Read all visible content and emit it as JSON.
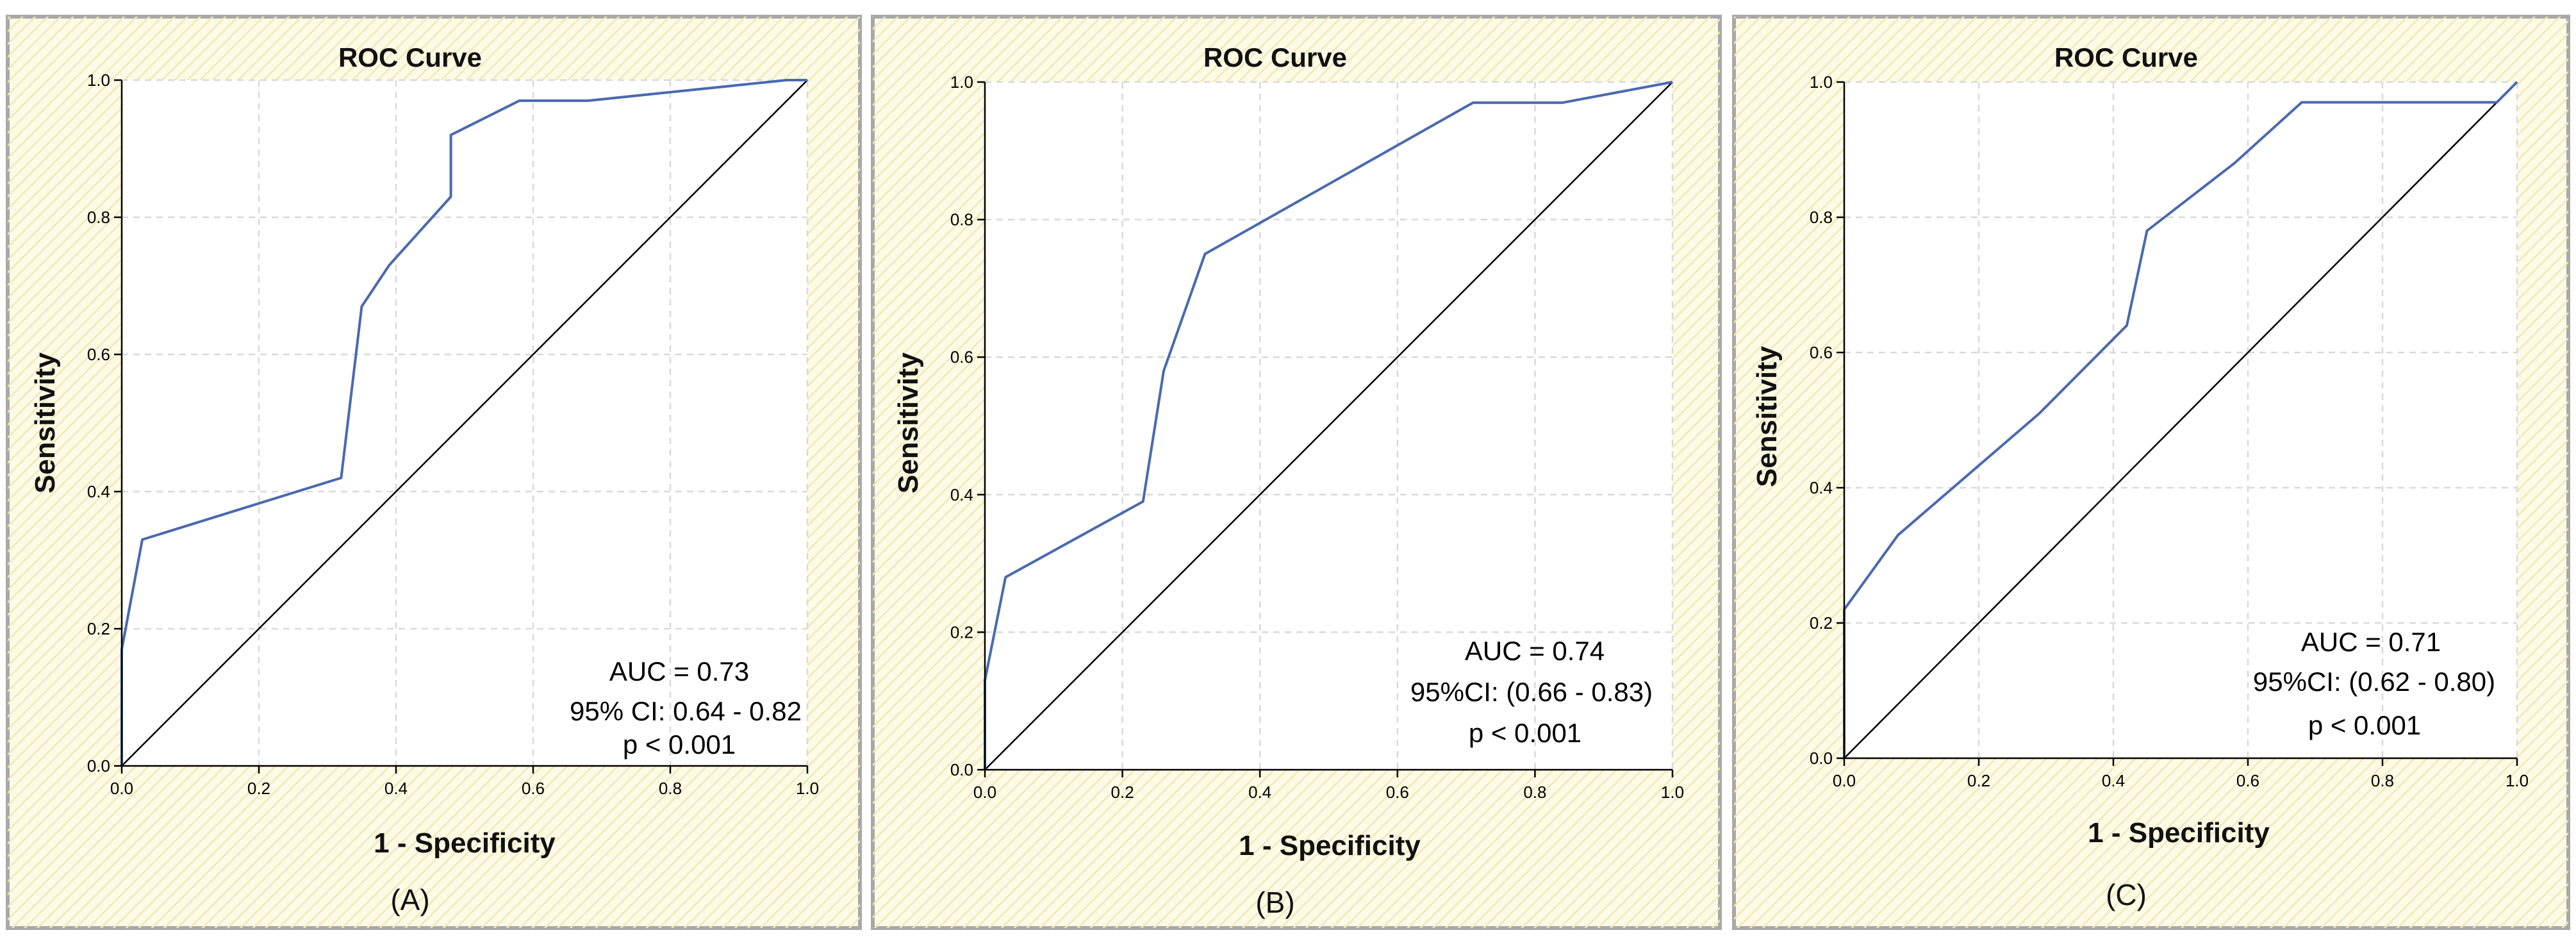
{
  "chart_data": [
    {
      "panel": "(A)",
      "type": "line",
      "title": "ROC Curve",
      "xlabel": "1 - Specificity",
      "ylabel": "Sensitivity",
      "xlim": [
        0,
        1
      ],
      "ylim": [
        0,
        1
      ],
      "xticks": [
        "0.0",
        "0.2",
        "0.4",
        "0.6",
        "0.8",
        "1.0"
      ],
      "yticks": [
        "0.0",
        "0.2",
        "0.4",
        "0.6",
        "0.8",
        "1.0"
      ],
      "grid": true,
      "reference_line": true,
      "series": [
        {
          "name": "ROC",
          "x": [
            0,
            0,
            0.03,
            0.32,
            0.35,
            0.39,
            0.48,
            0.48,
            0.58,
            0.68,
            0.97,
            1.0
          ],
          "y": [
            0,
            0.17,
            0.33,
            0.42,
            0.67,
            0.73,
            0.83,
            0.92,
            0.97,
            0.97,
            1.0,
            1.0
          ]
        }
      ],
      "annotations": [
        "AUC = 0.73",
        "95% CI: 0.64 - 0.82",
        "p < 0.001"
      ]
    },
    {
      "panel": "(B)",
      "type": "line",
      "title": "ROC Curve",
      "xlabel": "1 - Specificity",
      "ylabel": "Sensitivity",
      "xlim": [
        0,
        1
      ],
      "ylim": [
        0,
        1
      ],
      "xticks": [
        "0.0",
        "0.2",
        "0.4",
        "0.6",
        "0.8",
        "1.0"
      ],
      "yticks": [
        "0.0",
        "0.2",
        "0.4",
        "0.6",
        "0.8",
        "1.0"
      ],
      "grid": true,
      "reference_line": true,
      "series": [
        {
          "name": "ROC",
          "x": [
            0,
            0,
            0.03,
            0.23,
            0.26,
            0.32,
            0.71,
            0.84,
            1.0
          ],
          "y": [
            0,
            0.13,
            0.28,
            0.39,
            0.58,
            0.75,
            0.97,
            0.97,
            1.0
          ]
        }
      ],
      "annotations": [
        "AUC = 0.74",
        "95%CI: (0.66 - 0.83)",
        "p < 0.001"
      ]
    },
    {
      "panel": "(C)",
      "type": "line",
      "title": "ROC Curve",
      "xlabel": "1 - Specificity",
      "ylabel": "Sensitivity",
      "xlim": [
        0,
        1
      ],
      "ylim": [
        0,
        1
      ],
      "xticks": [
        "0.0",
        "0.2",
        "0.4",
        "0.6",
        "0.8",
        "1.0"
      ],
      "yticks": [
        "0.0",
        "0.2",
        "0.4",
        "0.6",
        "0.8",
        "1.0"
      ],
      "grid": true,
      "reference_line": true,
      "series": [
        {
          "name": "ROC",
          "x": [
            0,
            0,
            0.08,
            0.29,
            0.42,
            0.45,
            0.58,
            0.68,
            0.97,
            1.0
          ],
          "y": [
            0,
            0.22,
            0.33,
            0.51,
            0.64,
            0.78,
            0.88,
            0.97,
            0.97,
            1.0
          ]
        }
      ],
      "annotations": [
        "AUC = 0.71",
        "95%CI: (0.62 - 0.80)",
        "p < 0.001"
      ]
    }
  ]
}
